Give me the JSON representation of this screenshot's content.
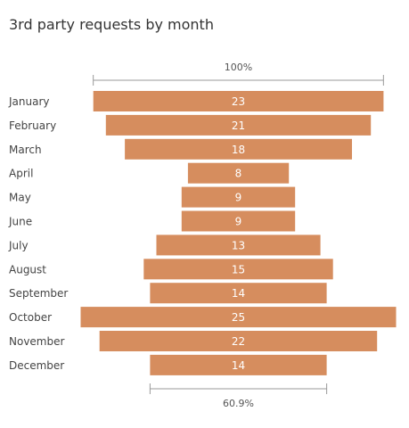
{
  "chart_data": {
    "type": "bar",
    "subtype": "funnel",
    "title": "3rd party requests by month",
    "categories": [
      "January",
      "February",
      "March",
      "April",
      "May",
      "June",
      "July",
      "August",
      "September",
      "October",
      "November",
      "December"
    ],
    "values": [
      23,
      21,
      18,
      8,
      9,
      9,
      13,
      15,
      14,
      25,
      22,
      14
    ],
    "top_ratio_label": "100%",
    "bottom_ratio_label": "60.9%",
    "bar_color": "#d68d5e",
    "label_color": "#ffffff",
    "axis_color": "#999999",
    "grid": false,
    "legend": "none"
  }
}
